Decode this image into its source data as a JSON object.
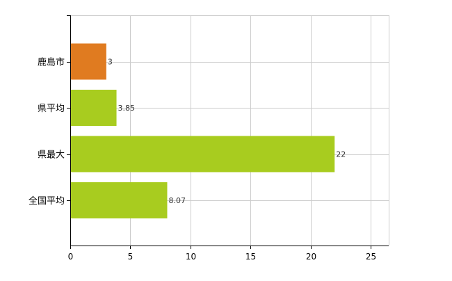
{
  "chart_data": {
    "type": "bar",
    "orientation": "horizontal",
    "title": "",
    "xlabel": "",
    "ylabel": "",
    "categories": [
      "鹿島市",
      "県平均",
      "県最大",
      "全国平均"
    ],
    "values": [
      3,
      3.85,
      22,
      8.07
    ],
    "value_labels": [
      "3",
      "3.85",
      "22",
      "8.07"
    ],
    "bar_colors": [
      "#e07b20",
      "#a8cc1f",
      "#a8cc1f",
      "#a8cc1f"
    ],
    "xlim": [
      0,
      26.5
    ],
    "x_ticks": [
      0,
      5,
      10,
      15,
      20,
      25
    ],
    "x_tick_labels": [
      "0",
      "5",
      "10",
      "15",
      "20",
      "25"
    ],
    "grid": true,
    "gridline_color": "#cccccc",
    "legend": "none"
  }
}
